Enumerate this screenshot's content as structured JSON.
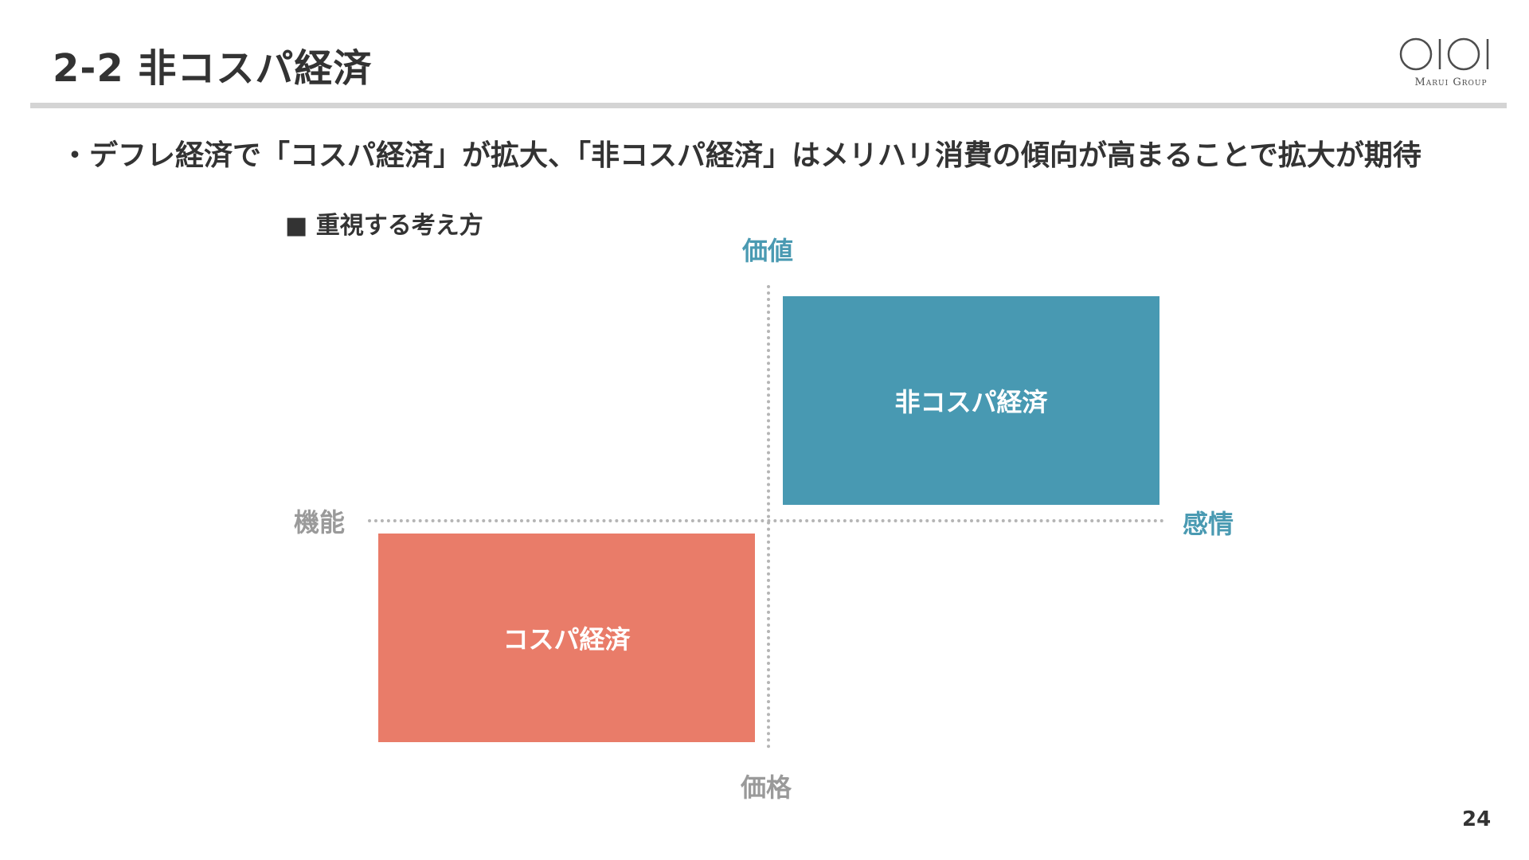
{
  "slide": {
    "title": "2-2 非コスパ経済",
    "bullet": "・デフレ経済で「コスパ経済」が拡大、「非コスパ経済」はメリハリ消費の傾向が高まることで拡大が期待",
    "section_label": "■ 重視する考え方",
    "page_number": "24"
  },
  "logo": {
    "text": "Marui Group",
    "color": "#4d4d4d"
  },
  "diagram": {
    "axes": {
      "top": "価値",
      "bottom": "価格",
      "left": "機能",
      "right": "感情"
    },
    "quadrants": [
      {
        "label": "非コスパ経済",
        "position": "top-right",
        "color": "#4899b2"
      },
      {
        "label": "コスパ経済",
        "position": "bottom-left",
        "color": "#e97c69"
      }
    ],
    "colors": {
      "accent_blue": "#4a9ab2",
      "axis_gray": "#9a9a9a",
      "axis_line": "#b5b5b5"
    }
  }
}
